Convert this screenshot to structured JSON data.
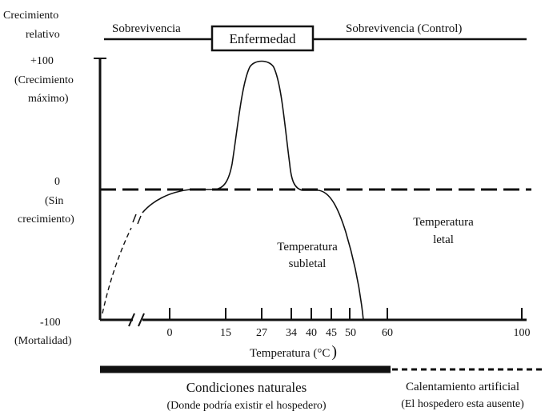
{
  "y_axis": {
    "title_line1": "Crecimiento",
    "title_line2": "relativo",
    "top_value": "+100",
    "top_note_line1": "(Crecimiento",
    "top_note_line2": "máximo)",
    "mid_value": "0",
    "mid_note_line1": "(Sin",
    "mid_note_line2": "crecimiento)",
    "bottom_value": "-100",
    "bottom_note": "(Mortalidad)"
  },
  "top_band": {
    "left_label": "Sobrevivencia",
    "center_box_label": "Enfermedad",
    "right_label": "Sobrevivencia (Control)"
  },
  "x_axis": {
    "title": "Temperatura (°C",
    "title_paren": ")",
    "ticks": [
      "0",
      "15",
      "27",
      "34",
      "40",
      "45",
      "50",
      "60",
      "100"
    ]
  },
  "regions": {
    "sublethal_line1": "Temperatura",
    "sublethal_line2": "subletal",
    "lethal_line1": "Temperatura",
    "lethal_line2": "letal"
  },
  "bottom_band": {
    "natural_title": "Condiciones naturales",
    "natural_subtitle": "(Donde podría existir el hospedero)",
    "artificial_title": "Calentamiento artificial",
    "artificial_subtitle": "(El hospedero esta ausente)"
  },
  "colors": {
    "ink": "#111111",
    "background": "#ffffff"
  }
}
